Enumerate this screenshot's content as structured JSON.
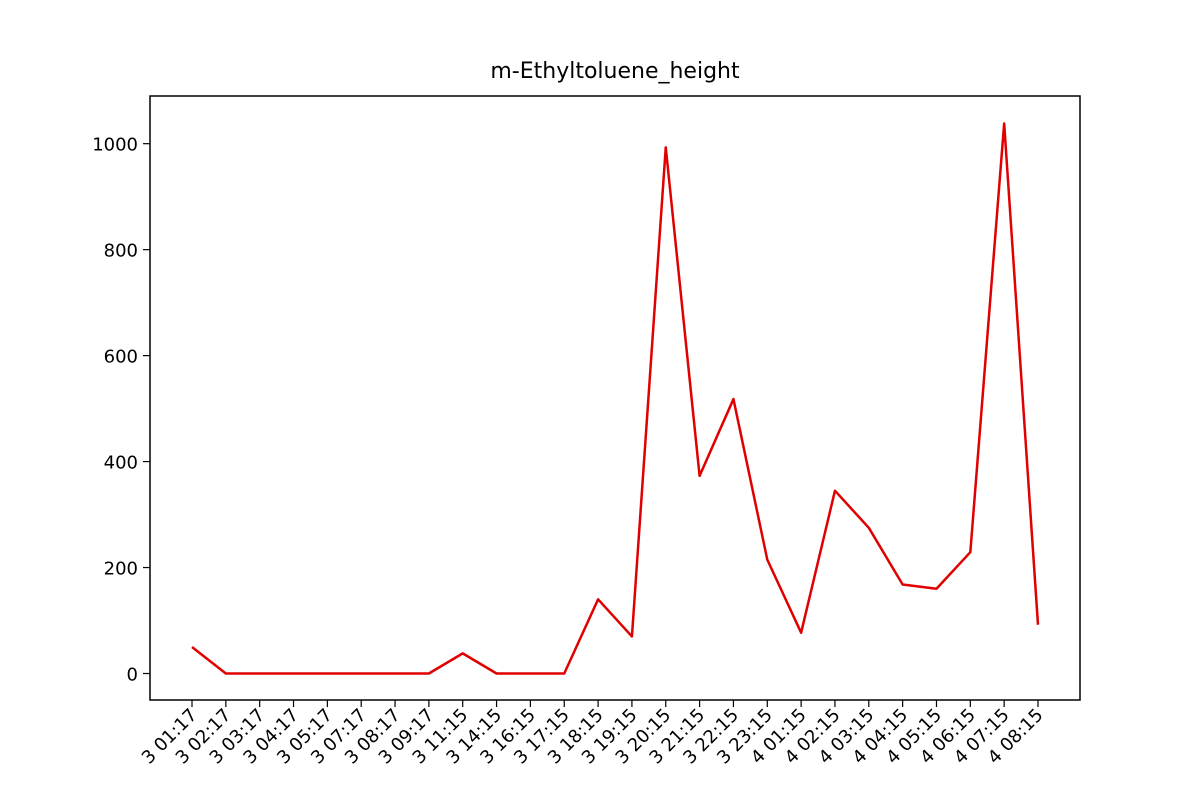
{
  "chart_data": {
    "type": "line",
    "title": "m-Ethyltoluene_height",
    "xlabel": "",
    "ylabel": "",
    "ylim": [
      -50,
      1090
    ],
    "y_ticks": [
      0,
      200,
      400,
      600,
      800,
      1000
    ],
    "grid": false,
    "legend": "none",
    "categories": [
      "3 01:17",
      "3 02:17",
      "3 03:17",
      "3 04:17",
      "3 05:17",
      "3 07:17",
      "3 08:17",
      "3 09:17",
      "3 11:15",
      "3 14:15",
      "3 16:15",
      "3 17:15",
      "3 18:15",
      "3 19:15",
      "3 20:15",
      "3 21:15",
      "3 22:15",
      "3 23:15",
      "4 01:15",
      "4 02:15",
      "4 03:15",
      "4 04:15",
      "4 05:15",
      "4 06:15",
      "4 07:15",
      "4 08:15"
    ],
    "series": [
      {
        "color": "#e00000",
        "values": [
          50,
          0,
          0,
          0,
          0,
          0,
          0,
          0,
          38,
          0,
          0,
          0,
          140,
          70,
          993,
          373,
          518,
          215,
          77,
          345,
          275,
          168,
          160,
          229,
          1038,
          92
        ]
      }
    ]
  }
}
